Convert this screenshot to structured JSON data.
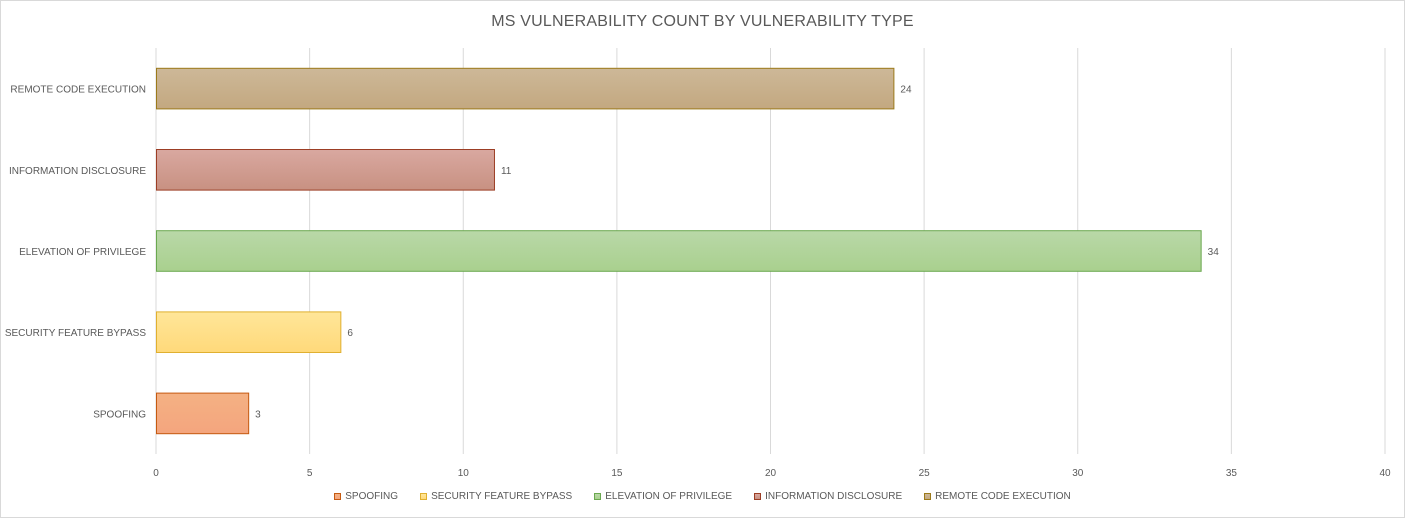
{
  "chart_data": {
    "type": "bar",
    "orientation": "horizontal",
    "title": "MS VULNERABILITY COUNT BY VULNERABILITY TYPE",
    "xlabel": "",
    "ylabel": "",
    "categories": [
      "SPOOFING",
      "SECURITY FEATURE BYPASS",
      "ELEVATION OF PRIVILEGE",
      "INFORMATION DISCLOSURE",
      "REMOTE CODE EXECUTION"
    ],
    "values": [
      3,
      6,
      34,
      11,
      24
    ],
    "xlim": [
      0,
      40
    ],
    "xticks": [
      0,
      5,
      10,
      15,
      20,
      25,
      30,
      35,
      40
    ],
    "grid": "vertical",
    "legend_position": "bottom",
    "colors": [
      {
        "top": "#f4b183",
        "bottom": "#f4a57e",
        "border": "#c55a11"
      },
      {
        "top": "#ffe699",
        "bottom": "#ffd97a",
        "border": "#e0b030"
      },
      {
        "top": "#b9d8a8",
        "bottom": "#a9d08e",
        "border": "#6aa84f"
      },
      {
        "top": "#d9a8a0",
        "bottom": "#c89182",
        "border": "#9c3e25"
      },
      {
        "top": "#cdb898",
        "bottom": "#c3a880",
        "border": "#9c7a1a"
      }
    ]
  }
}
